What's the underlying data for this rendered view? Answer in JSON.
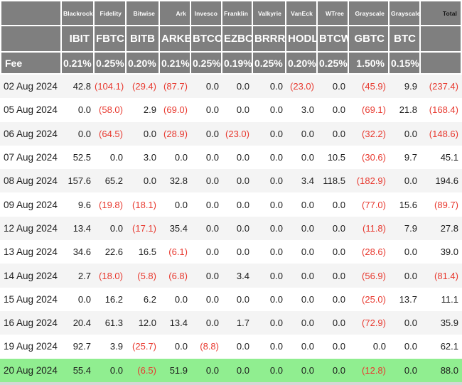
{
  "colors": {
    "header_bg": "#7f7f7f",
    "header_text": "#ffffff",
    "total_text": "#161616",
    "value_text": "#1c1c1c",
    "negative": "#e8392f",
    "stripe": "#f4f4f4",
    "row_white": "#ffffff",
    "highlight": "#90ee90",
    "gap": "#ffffff",
    "page_bg": "#ffffff",
    "bottom_strip": "#d6d6d6"
  },
  "chart_data": {
    "type": "table",
    "fee_row_label": "Fee",
    "total_column_label": "Total",
    "column_groups": [
      "Blackrock",
      "Fidelity",
      "Bitwise",
      "Ark",
      "Invesco",
      "Franklin",
      "Valkyrie",
      "VanEck",
      "WTree",
      "Grayscale",
      "Grayscale"
    ],
    "tickers": [
      "IBIT",
      "FBTC",
      "BITB",
      "ARKB",
      "BTCO",
      "EZBC",
      "BRRR",
      "HODL",
      "BTCW",
      "GBTC",
      "BTC"
    ],
    "fees": [
      "0.21%",
      "0.25%",
      "0.20%",
      "0.21%",
      "0.25%",
      "0.19%",
      "0.25%",
      "0.20%",
      "0.25%",
      "1.50%",
      "0.15%"
    ],
    "negative_format": "parentheses-red",
    "rows": [
      {
        "date": "02 Aug 2024",
        "values": [
          42.8,
          -104.1,
          -29.4,
          -87.7,
          0.0,
          0.0,
          0.0,
          -23.0,
          0.0,
          -45.9,
          9.9
        ],
        "total": -237.4,
        "highlight": false
      },
      {
        "date": "05 Aug 2024",
        "values": [
          0.0,
          -58.0,
          2.9,
          -69.0,
          0.0,
          0.0,
          0.0,
          3.0,
          0.0,
          -69.1,
          21.8
        ],
        "total": -168.4,
        "highlight": false
      },
      {
        "date": "06 Aug 2024",
        "values": [
          0.0,
          -64.5,
          0.0,
          -28.9,
          0.0,
          -23.0,
          0.0,
          0.0,
          0.0,
          -32.2,
          0.0
        ],
        "total": -148.6,
        "highlight": false
      },
      {
        "date": "07 Aug 2024",
        "values": [
          52.5,
          0.0,
          3.0,
          0.0,
          0.0,
          0.0,
          0.0,
          0.0,
          10.5,
          -30.6,
          9.7
        ],
        "total": 45.1,
        "highlight": false
      },
      {
        "date": "08 Aug 2024",
        "values": [
          157.6,
          65.2,
          0.0,
          32.8,
          0.0,
          0.0,
          0.0,
          3.4,
          118.5,
          -182.9,
          0.0
        ],
        "total": 194.6,
        "highlight": false
      },
      {
        "date": "09 Aug 2024",
        "values": [
          9.6,
          -19.8,
          -18.1,
          0.0,
          0.0,
          0.0,
          0.0,
          0.0,
          0.0,
          -77.0,
          15.6
        ],
        "total": -89.7,
        "highlight": false
      },
      {
        "date": "12 Aug 2024",
        "values": [
          13.4,
          0.0,
          -17.1,
          35.4,
          0.0,
          0.0,
          0.0,
          0.0,
          0.0,
          -11.8,
          7.9
        ],
        "total": 27.8,
        "highlight": false
      },
      {
        "date": "13 Aug 2024",
        "values": [
          34.6,
          22.6,
          16.5,
          -6.1,
          0.0,
          0.0,
          0.0,
          0.0,
          0.0,
          -28.6,
          0.0
        ],
        "total": 39.0,
        "highlight": false
      },
      {
        "date": "14 Aug 2024",
        "values": [
          2.7,
          -18.0,
          -5.8,
          -6.8,
          0.0,
          3.4,
          0.0,
          0.0,
          0.0,
          -56.9,
          0.0
        ],
        "total": -81.4,
        "highlight": false
      },
      {
        "date": "15 Aug 2024",
        "values": [
          0.0,
          16.2,
          6.2,
          0.0,
          0.0,
          0.0,
          0.0,
          0.0,
          0.0,
          -25.0,
          13.7
        ],
        "total": 11.1,
        "highlight": false
      },
      {
        "date": "16 Aug 2024",
        "values": [
          20.4,
          61.3,
          12.0,
          13.4,
          0.0,
          1.7,
          0.0,
          0.0,
          0.0,
          -72.9,
          0.0
        ],
        "total": 35.9,
        "highlight": false
      },
      {
        "date": "19 Aug 2024",
        "values": [
          92.7,
          3.9,
          -25.7,
          0.0,
          -8.8,
          0.0,
          0.0,
          0.0,
          0.0,
          0.0,
          0.0
        ],
        "total": 62.1,
        "highlight": false
      },
      {
        "date": "20 Aug 2024",
        "values": [
          55.4,
          0.0,
          -6.5,
          51.9,
          0.0,
          0.0,
          0.0,
          0.0,
          0.0,
          -12.8,
          0.0
        ],
        "total": 88.0,
        "highlight": true
      }
    ]
  }
}
